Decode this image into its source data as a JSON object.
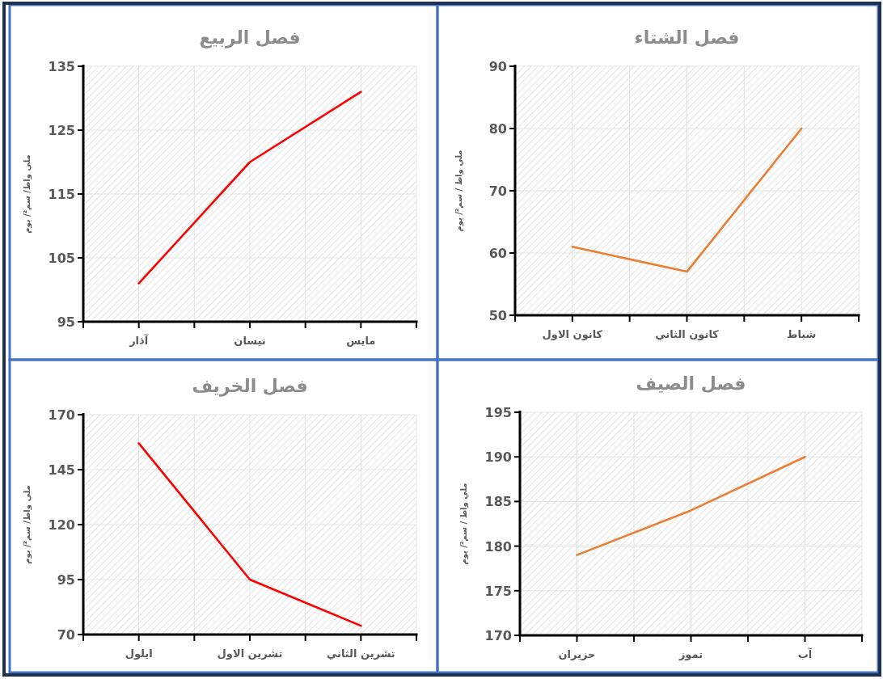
{
  "chart_data": [
    {
      "type": "line",
      "title": "فصل الشتاء",
      "ylabel": "ملي واط / سم²/ يوم",
      "categories": [
        "كانون الاول",
        "كانون الثاني",
        "شباط"
      ],
      "series": [
        {
          "color": "#ed7d31",
          "values": [
            61,
            57,
            80
          ]
        }
      ],
      "ylim": [
        50,
        90
      ],
      "yticks": [
        50,
        60,
        70,
        80,
        90
      ],
      "grid": true
    },
    {
      "type": "line",
      "title": "فصل الربيع",
      "ylabel": "ملي واط/ سم²/ يوم",
      "categories": [
        "آذار",
        "نيسان",
        "مايس"
      ],
      "series": [
        {
          "color": "#ff0000",
          "values": [
            101,
            120,
            131
          ]
        }
      ],
      "ylim": [
        95,
        135
      ],
      "yticks": [
        95,
        105,
        115,
        125,
        135
      ],
      "grid": true
    },
    {
      "type": "line",
      "title": "فصل الصيف",
      "ylabel": "ملي واط / سم²/ يوم",
      "categories": [
        "حزيران",
        "تموز",
        "آب"
      ],
      "series": [
        {
          "color": "#ed7d31",
          "values": [
            179,
            184,
            190
          ]
        }
      ],
      "ylim": [
        170,
        195
      ],
      "yticks": [
        170,
        175,
        180,
        185,
        190,
        195
      ],
      "grid": true
    },
    {
      "type": "line",
      "title": "فصل الخريف",
      "ylabel": "ملي واط/ سم²/ يوم",
      "categories": [
        "ايلول",
        "تشرين الاول",
        "تشرين الثاني"
      ],
      "series": [
        {
          "color": "#ff0000",
          "values": [
            157,
            95,
            74
          ]
        }
      ],
      "ylim": [
        70,
        170
      ],
      "yticks": [
        70,
        95,
        120,
        145,
        170
      ],
      "grid": true
    }
  ]
}
